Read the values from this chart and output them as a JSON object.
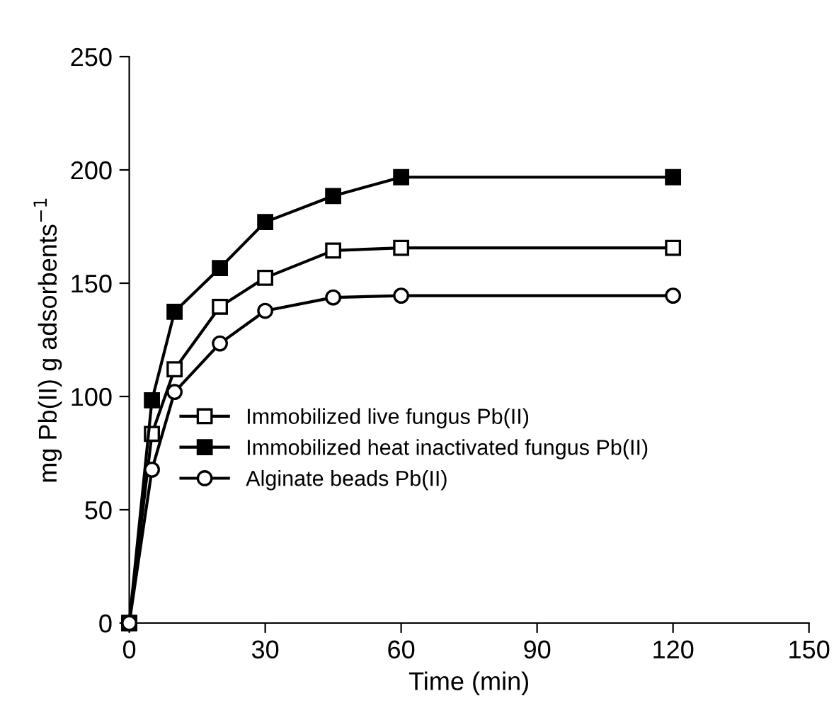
{
  "chart_data": {
    "type": "line",
    "xlabel": "Time (min)",
    "ylabel": "mg Pb(II) g adsorbents$^{−1}$",
    "x": [
      0,
      5,
      10,
      20,
      30,
      45,
      60,
      120
    ],
    "series": [
      {
        "name": "Immobilized live fungus Pb(II)",
        "color": "#000000",
        "marker": "square",
        "values": [
          0,
          83.5,
          112,
          139.6,
          152.4,
          164.4,
          165.6,
          165.6
        ]
      },
      {
        "name": "Immobilized heat inactivated fungus Pb(II)",
        "color": "#000000",
        "marker": "square",
        "values": [
          0,
          98.3,
          137.4,
          156.7,
          177,
          188.5,
          196.8,
          196.8
        ]
      },
      {
        "name": "Alginate beads Pb(II)",
        "color": "#000000",
        "marker": "circle",
        "values": [
          0,
          67.7,
          102,
          123.4,
          137.8,
          143.7,
          144.5,
          144.5
        ]
      }
    ],
    "xlim": [
      0,
      150
    ],
    "xticks": [
      0,
      30,
      60,
      90,
      120,
      150
    ],
    "ylim": [
      0,
      250
    ],
    "yticks": [
      0,
      50,
      100,
      150,
      200,
      250
    ],
    "grid": false,
    "legend": "center",
    "line_style": "solid"
  }
}
